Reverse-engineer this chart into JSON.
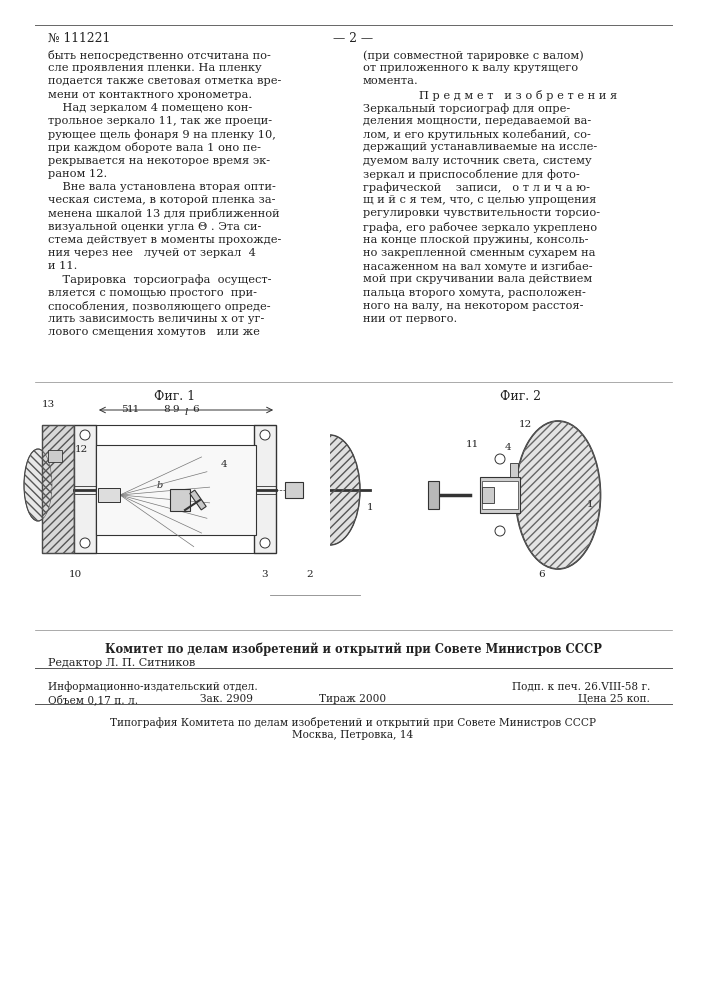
{
  "page_num": "№ 111221",
  "page_num2": "— 2 —",
  "bg_color": "#ffffff",
  "text_color": "#222222",
  "col1_lines": [
    "быть непосредственно отсчитана по-",
    "сле проявления пленки. На пленку",
    "подается также световая отметка вре-",
    "мени от контактного хронометра.",
    "    Над зеркалом 4 помещено кон-",
    "трольное зеркало 11, так же проеци-",
    "рующее щель фонаря 9 на пленку 10,",
    "при каждом обороте вала 1 оно пе-",
    "рекрывается на некоторое время эк-",
    "раном 12.",
    "    Вне вала установлена вторая опти-",
    "ческая система, в которой пленка за-",
    "менена шкалой 13 для приближенной",
    "визуальной оценки угла Θ . Эта си-",
    "стема действует в моменты прохожде-",
    "ния через нее   лучей от зеркал  4",
    "и 11.",
    "    Тарировка  торсиографа  осущест-",
    "вляется с помощью простого  при-",
    "способления, позволяющего опреде-",
    "лить зависимость величины x от уг-",
    "лового смещения хомутов   или же"
  ],
  "col2_lines": [
    "(при совместной тарировке с валом)",
    "от приложенного к валу крутящего",
    "момента.",
    "PREDMET_IZOBR",
    "Зеркальный торсиограф для опре-",
    "деления мощности, передаваемой ва-",
    "лом, и его крутильных колебаний, со-",
    "держащий устанавливаемые на иссле-",
    "дуемом валу источник света, систему",
    "зеркал и приспособление для фото-",
    "графической    записи,   о т л и ч а ю-",
    "щ и й с я тем, что, с целью упрощения",
    "регулировки чувствительности торсио-",
    "графа, его рабочее зеркало укреплено",
    "на конце плоской пружины, консоль-",
    "но закрепленной сменным сухарем на",
    "насаженном на вал хомуте и изгибае-",
    "мой при скручивании вала действием",
    "пальца второго хомута, расположен-",
    "ного на валу, на некотором расстоя-",
    "нии от первого."
  ],
  "fig1_label": "Фиг. 1",
  "fig2_label": "Фиг. 2",
  "footer_committee": "Комитет по делам изобретений и открытий при Совете Министров СССР",
  "footer_editor": "Редактор Л. П. Ситников",
  "footer_info1": "Информационно-издательский отдел.",
  "footer_info2": "Объем 0,17 п. л.",
  "footer_zak": "Зак. 2909",
  "footer_tirazh": "Тираж 2000",
  "footer_podn": "Подп. к печ. 26.VIII-58 г.",
  "footer_cena": "Цена 25 коп.",
  "footer_typografia": "Типография Комитета по делам изобретений и открытий при Совете Министров СССР",
  "footer_moscow": "Москва, Петровка, 14"
}
